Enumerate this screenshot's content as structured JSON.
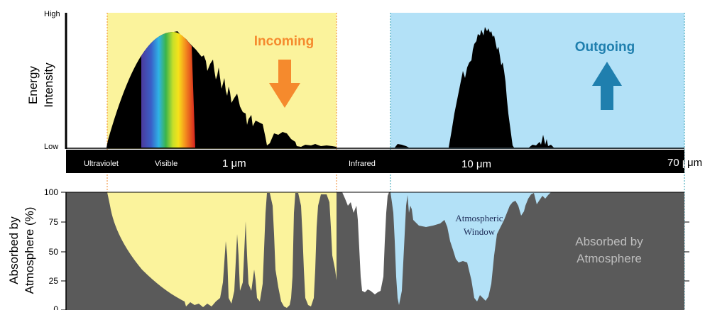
{
  "top_panel": {
    "y_axis_label_line1": "Energy",
    "y_axis_label_line2": "Intensity",
    "y_high_label": "High",
    "y_low_label": "Low",
    "incoming_label": "Incoming",
    "outgoing_label": "Outgoing"
  },
  "wavelength_bar": {
    "ultraviolet": "Ultraviolet",
    "visible": "Visible",
    "tick_1um": "1 μm",
    "infrared": "Infrared",
    "tick_10um": "10 μm",
    "tick_70um": "70 μm"
  },
  "bottom_panel": {
    "y_axis_label_line1": "Absorbed by",
    "y_axis_label_line2": "Atmosphere (%)",
    "ticks": [
      "100",
      "75",
      "50",
      "25",
      "0"
    ],
    "window_label_line1": "Atmospheric",
    "window_label_line2": "Window",
    "absorbed_label_line1": "Absorbed by",
    "absorbed_label_line2": "Atmosphere"
  },
  "colors": {
    "incoming_region": "#fbf39c",
    "outgoing_region": "#b3e1f7",
    "incoming_text": "#f58a2d",
    "outgoing_text": "#1f7fae",
    "atmosphere": "#5a5a5a",
    "spectrum": "#000000"
  }
}
